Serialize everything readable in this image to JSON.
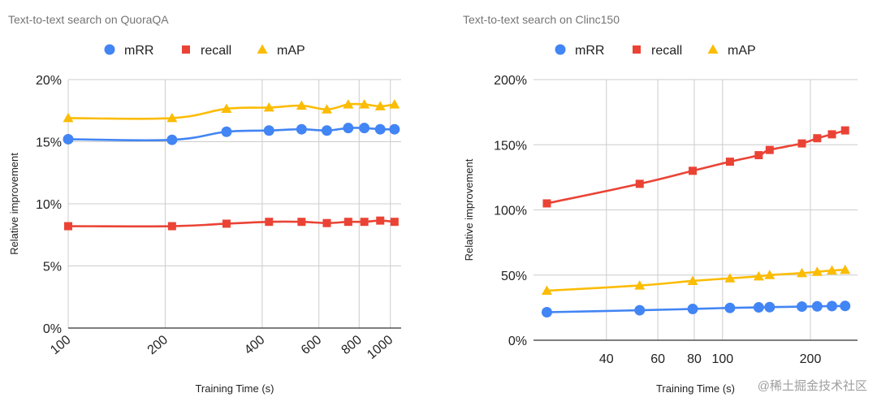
{
  "colors": {
    "mRR": "#4285F4",
    "recall": "#EA4335",
    "mAP": "#FBBC04",
    "grid": "#cccccc",
    "axis": "#333333"
  },
  "watermark": "@稀土掘金技术社区",
  "chart_data": [
    {
      "type": "line",
      "title": "Text-to-text search on QuoraQA",
      "xlabel": "Training Time (s)",
      "ylabel": "Relative improvement",
      "x_scale": "log",
      "xlim": [
        100,
        1080
      ],
      "x_ticks": [
        100,
        200,
        400,
        600,
        800,
        1000
      ],
      "x_tick_labels": [
        "100",
        "200",
        "400",
        "600",
        "800",
        "1000"
      ],
      "ylim": [
        0,
        20
      ],
      "y_ticks": [
        0,
        5,
        10,
        15,
        20
      ],
      "y_tick_labels": [
        "0%",
        "5%",
        "10%",
        "15%",
        "20%"
      ],
      "grid": true,
      "legend_position": "top-left",
      "x": [
        100,
        210,
        310,
        420,
        530,
        635,
        740,
        830,
        930,
        1030
      ],
      "series": [
        {
          "name": "mRR",
          "marker": "circle",
          "values": [
            15.2,
            15.15,
            15.8,
            15.9,
            16.0,
            15.9,
            16.1,
            16.1,
            16.0,
            16.0
          ]
        },
        {
          "name": "recall",
          "marker": "square",
          "values": [
            8.2,
            8.2,
            8.4,
            8.55,
            8.55,
            8.45,
            8.55,
            8.55,
            8.65,
            8.55
          ]
        },
        {
          "name": "mAP",
          "marker": "triangle",
          "values": [
            16.9,
            16.9,
            17.65,
            17.75,
            17.9,
            17.6,
            18.0,
            18.0,
            17.85,
            18.0
          ]
        }
      ]
    },
    {
      "type": "line",
      "title": "Text-to-text search on Clinc150",
      "xlabel": "Training Time (s)",
      "ylabel": "Relative improvement",
      "x_scale": "log",
      "xlim": [
        22.5,
        290
      ],
      "x_ticks": [
        40,
        60,
        80,
        100,
        200
      ],
      "x_tick_labels": [
        "40",
        "60",
        "80",
        "100",
        "200"
      ],
      "ylim": [
        0,
        200
      ],
      "y_ticks": [
        0,
        50,
        100,
        150,
        200
      ],
      "y_tick_labels": [
        "0%",
        "50%",
        "100%",
        "150%",
        "200%"
      ],
      "grid": true,
      "legend_position": "top-left",
      "x": [
        25,
        52,
        79,
        106,
        133,
        145,
        187,
        211,
        237,
        263
      ],
      "series": [
        {
          "name": "mRR",
          "marker": "circle",
          "values": [
            21.5,
            23,
            24,
            24.8,
            25.2,
            25.4,
            25.8,
            26,
            26.2,
            26.3
          ]
        },
        {
          "name": "recall",
          "marker": "square",
          "values": [
            105,
            120,
            130,
            137,
            142,
            146,
            151,
            155,
            158,
            161
          ]
        },
        {
          "name": "mAP",
          "marker": "triangle",
          "values": [
            38,
            42,
            45.5,
            47.5,
            49,
            50,
            51.5,
            52.5,
            53.5,
            54
          ]
        }
      ]
    }
  ]
}
